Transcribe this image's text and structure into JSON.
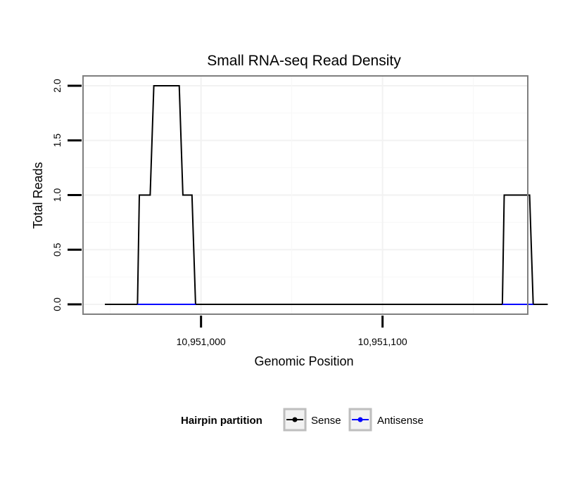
{
  "chart_data": {
    "type": "line",
    "title": "Small RNA-seq Read Density",
    "xlabel": "Genomic Position",
    "ylabel": "Total Reads",
    "xlim": [
      10950935,
      10951180
    ],
    "ylim": [
      -0.09,
      2.09
    ],
    "x_ticks": [
      10951000,
      10951100
    ],
    "x_tick_labels": [
      "10,951,000",
      "10,951,100"
    ],
    "y_ticks": [
      0.0,
      0.5,
      1.0,
      1.5,
      2.0
    ],
    "y_tick_labels": [
      "0.0",
      "0.5",
      "1.0",
      "1.5",
      "2.0"
    ],
    "grid": true,
    "legend": {
      "title": "Hairpin partition",
      "position": "bottom",
      "entries": [
        {
          "label": "Sense",
          "color": "#000000"
        },
        {
          "label": "Antisense",
          "color": "#0000ff"
        }
      ]
    },
    "series": [
      {
        "name": "Sense",
        "color": "#000000",
        "x": [
          10950947,
          10950965,
          10950966,
          10950972,
          10950974,
          10950988,
          10950990,
          10950995,
          10950997,
          10951166,
          10951167,
          10951181,
          10951183,
          10951191
        ],
        "y": [
          0,
          0,
          1,
          1,
          2,
          2,
          1,
          1,
          0,
          0,
          1,
          1,
          0,
          0
        ]
      },
      {
        "name": "Antisense",
        "color": "#0000ff",
        "x": [
          10950965,
          10950997,
          10951166,
          10951183
        ],
        "y": [
          0,
          0,
          0,
          0
        ],
        "segments": [
          [
            0,
            1
          ],
          [
            2,
            3
          ]
        ]
      }
    ]
  }
}
